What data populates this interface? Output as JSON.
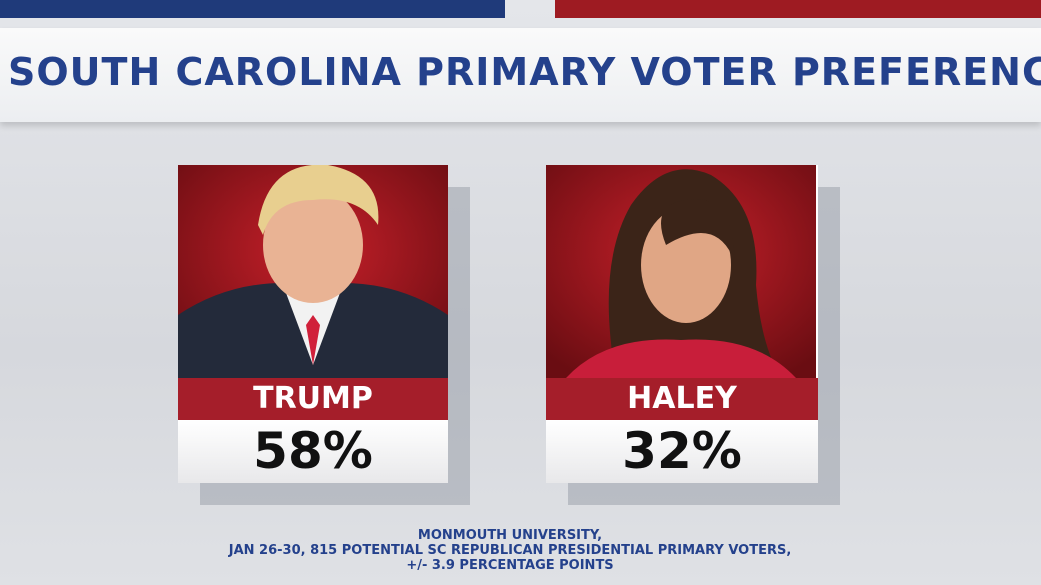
{
  "header": {
    "title": "SOUTH CAROLINA PRIMARY VOTER PREFERENCE"
  },
  "candidates": [
    {
      "name": "TRUMP",
      "result": "58%"
    },
    {
      "name": "HALEY",
      "result": "32%"
    }
  ],
  "source": {
    "lines": [
      "MONMOUTH UNIVERSITY,",
      "JAN 26-30, 815 POTENTIAL SC REPUBLICAN PRESIDENTIAL PRIMARY VOTERS,",
      "+/- 3.9 PERCENTAGE POINTS"
    ]
  }
}
